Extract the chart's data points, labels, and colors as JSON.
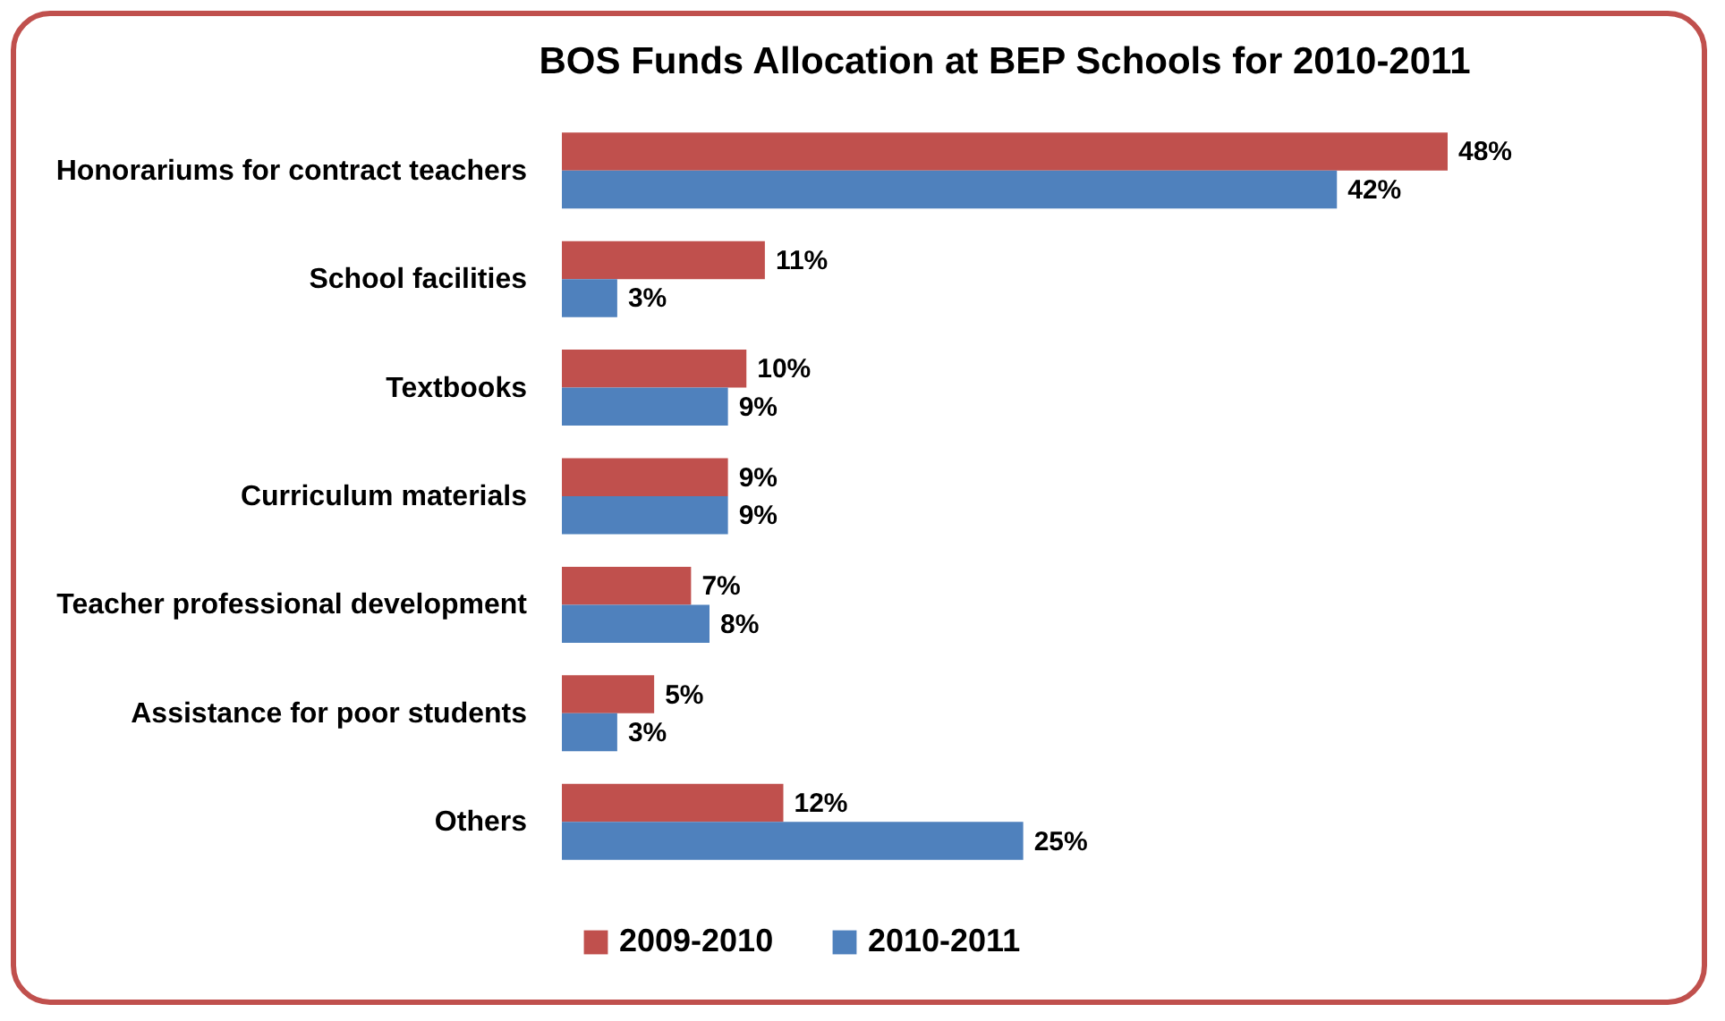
{
  "chart_data": {
    "type": "bar",
    "orientation": "horizontal",
    "title": "BOS Funds Allocation at BEP Schools for 2010-2011",
    "categories": [
      "Honorariums for contract teachers",
      "School facilities",
      "Textbooks",
      "Curriculum materials",
      "Teacher professional development",
      "Assistance for poor students",
      "Others"
    ],
    "series": [
      {
        "name": "2009-2010",
        "color": "#c0504d",
        "values": [
          48,
          11,
          10,
          9,
          7,
          5,
          12
        ],
        "value_labels": [
          "48%",
          "11%",
          "10%",
          "9%",
          "7%",
          "5%",
          "12%"
        ]
      },
      {
        "name": "2010-2011",
        "color": "#4f81bd",
        "values": [
          42,
          3,
          9,
          9,
          8,
          3,
          25
        ],
        "value_labels": [
          "42%",
          "3%",
          "9%",
          "9%",
          "8%",
          "3%",
          "25%"
        ]
      }
    ],
    "legend": "bottom"
  }
}
